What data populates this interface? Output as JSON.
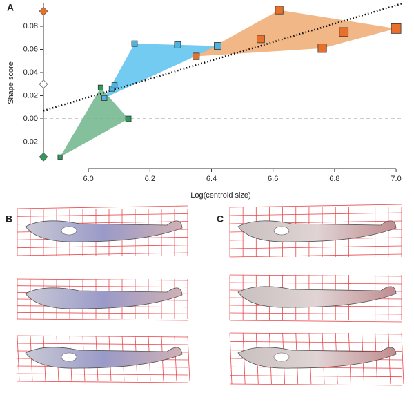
{
  "panel_labels": {
    "a": "A",
    "b": "B",
    "c": "C"
  },
  "chart_data": {
    "type": "scatter",
    "xlabel": "Log(centroid size)",
    "ylabel": "Shape score",
    "xlim": [
      5.854,
      7.02
    ],
    "ylim": [
      -0.0358,
      0.0997
    ],
    "xticks": [
      {
        "value": 6.0,
        "label": "6.0"
      },
      6.2,
      6.4,
      6.6,
      6.8,
      {
        "value": 7.0,
        "label": "7.0"
      }
    ],
    "yticks": [
      -0.02,
      {
        "value": 0,
        "label": "0.00"
      },
      0.02,
      0.04,
      0.06,
      0.08
    ],
    "reference_line": 0,
    "trendline": {
      "x": [
        5.854,
        7.02
      ],
      "y": [
        0.007,
        0.0997
      ]
    },
    "series": [
      {
        "color": "#2e9a5c",
        "hull_color": "#6db58a",
        "x": [
          5.908,
          6.04,
          6.13
        ],
        "values": [
          -0.033,
          0.027,
          0.0
        ],
        "axis_marker": -0.033,
        "axis_marker_color": "#2e9a5c"
      },
      {
        "color": "#4fb3e0",
        "hull_color": "#5cc2ee",
        "x": [
          6.052,
          6.076,
          6.085,
          6.15,
          6.29,
          6.42
        ],
        "values": [
          0.018,
          0.026,
          0.029,
          0.065,
          0.064,
          0.063
        ],
        "axis_marker": 0.03,
        "axis_marker_color": "#ffffff"
      },
      {
        "color": "#e8702a",
        "hull_color": "#f0aa72",
        "x": [
          6.35,
          6.56,
          6.62,
          6.76,
          6.83,
          7.0
        ],
        "values": [
          0.054,
          0.069,
          0.094,
          0.061,
          0.075,
          0.078
        ],
        "axis_marker": 0.093,
        "axis_marker_color": "#e8702a"
      }
    ]
  }
}
